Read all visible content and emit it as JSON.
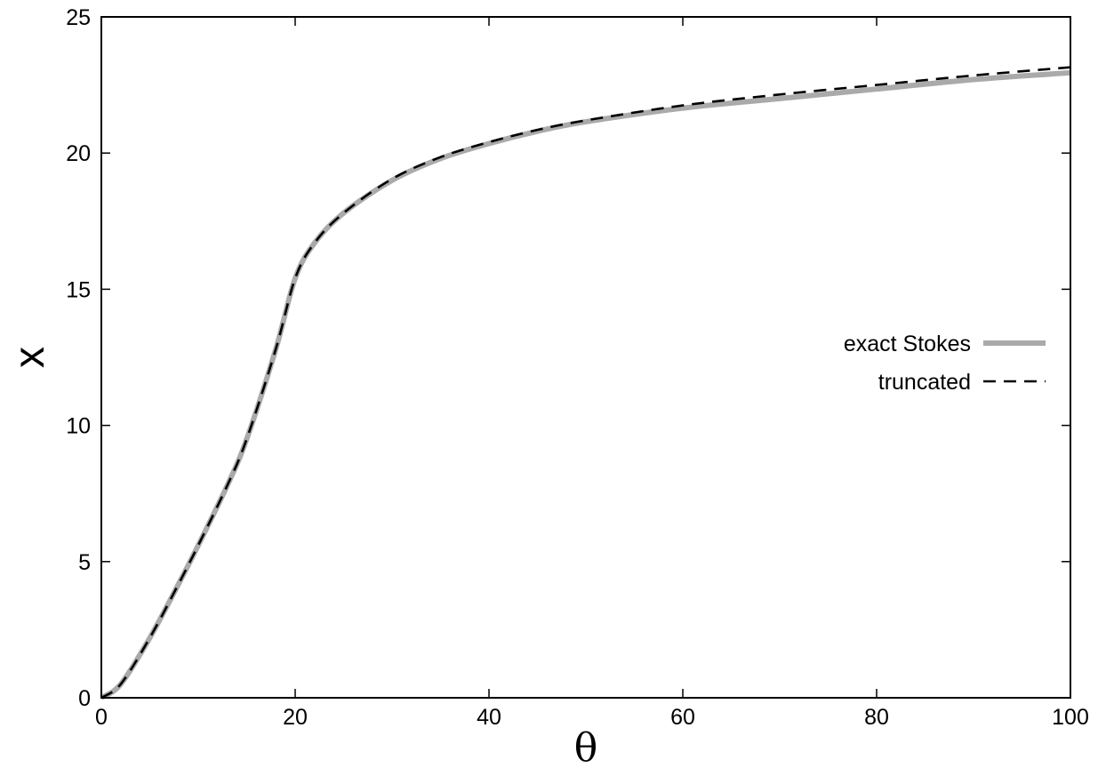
{
  "chart_data": {
    "type": "line",
    "xlabel": "θ",
    "ylabel": "x",
    "xlim": [
      0,
      100
    ],
    "ylim": [
      0,
      25
    ],
    "xticks": [
      0,
      20,
      40,
      60,
      80,
      100
    ],
    "yticks": [
      0,
      5,
      10,
      15,
      20,
      25
    ],
    "xtick_labels": [
      "0",
      "20",
      "40",
      "60",
      "80",
      "100"
    ],
    "ytick_labels": [
      "0",
      "5",
      "10",
      "15",
      "20",
      "25"
    ],
    "grid": false,
    "legend": {
      "placement": "right, middle"
    },
    "series": [
      {
        "name": "exact Stokes",
        "style": "solid",
        "color": "#aaaaaa",
        "x": [
          0,
          2,
          5,
          8,
          10,
          13,
          15,
          18,
          20,
          22,
          25,
          30,
          35,
          40,
          45,
          50,
          60,
          70,
          80,
          90,
          100
        ],
        "y": [
          0,
          0.5,
          2.2,
          4.2,
          5.6,
          7.8,
          9.5,
          12.8,
          15.4,
          16.7,
          17.8,
          19.0,
          19.8,
          20.35,
          20.8,
          21.15,
          21.65,
          22.0,
          22.35,
          22.7,
          22.95
        ]
      },
      {
        "name": "truncated",
        "style": "dashed",
        "color": "#000000",
        "x": [
          0,
          2,
          5,
          8,
          10,
          13,
          15,
          18,
          20,
          22,
          25,
          30,
          35,
          40,
          45,
          50,
          60,
          70,
          80,
          90,
          100
        ],
        "y": [
          0,
          0.5,
          2.2,
          4.2,
          5.6,
          7.8,
          9.5,
          12.8,
          15.4,
          16.7,
          17.8,
          19.05,
          19.85,
          20.4,
          20.85,
          21.2,
          21.75,
          22.15,
          22.5,
          22.85,
          23.15
        ]
      }
    ]
  }
}
